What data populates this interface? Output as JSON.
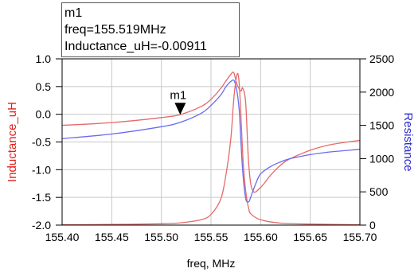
{
  "marker_box": {
    "name": "m1",
    "freq_line": "freq=155.519MHz",
    "value_line": "Inductance_uH=-0.00911"
  },
  "marker_label": "m1",
  "colors": {
    "inductance": "#e46a6a",
    "resistance": "#6a6af0",
    "grid": "#c8c8c8",
    "frame": "#000000",
    "left_axis_title": "#e0201b",
    "right_axis_title": "#2b2bd1"
  },
  "chart_data": {
    "type": "line",
    "xlabel": "freq, MHz",
    "ylabel_left": "Inductance_uH",
    "ylabel_right": "Resistance",
    "xlim": [
      155.4,
      155.7
    ],
    "ylim_left": [
      -2.0,
      1.0
    ],
    "ylim_right": [
      0,
      2500
    ],
    "x_ticks": [
      "155.40",
      "155.45",
      "155.50",
      "155.55",
      "155.60",
      "155.65",
      "155.70"
    ],
    "y_left_ticks": [
      "1.0",
      "0.5",
      "0.0",
      "-0.5",
      "-1.0",
      "-1.5",
      "-2.0"
    ],
    "y_right_ticks": [
      "2500",
      "2000",
      "1500",
      "1000",
      "500",
      "0"
    ],
    "grid": true,
    "marker": {
      "x": 155.519,
      "y": -0.00911
    },
    "series": [
      {
        "name": "Inductance_uH",
        "axis": "left",
        "x": [
          155.4,
          155.45,
          155.5,
          155.52,
          155.54,
          155.55,
          155.56,
          155.565,
          155.57,
          155.573,
          155.576,
          155.58,
          155.582,
          155.585,
          155.588,
          155.592,
          155.6,
          155.61,
          155.62,
          155.63,
          155.65,
          155.67,
          155.7
        ],
        "values": [
          -0.2,
          -0.15,
          -0.06,
          0.0,
          0.14,
          0.27,
          0.47,
          0.6,
          0.72,
          0.75,
          0.55,
          0.42,
          0.47,
          0.2,
          -0.9,
          -1.38,
          -1.32,
          -1.1,
          -0.92,
          -0.8,
          -0.65,
          -0.55,
          -0.47
        ]
      },
      {
        "name": "Resistance",
        "axis": "right",
        "x": [
          155.4,
          155.45,
          155.5,
          155.52,
          155.54,
          155.55,
          155.56,
          155.565,
          155.57,
          155.574,
          155.578,
          155.58,
          155.582,
          155.585,
          155.588,
          155.59,
          155.595,
          155.6,
          155.61,
          155.62,
          155.63,
          155.65,
          155.67,
          155.7
        ],
        "values": [
          1300,
          1370,
          1480,
          1550,
          1680,
          1800,
          1960,
          2080,
          2160,
          2150,
          1800,
          1300,
          800,
          400,
          350,
          420,
          620,
          770,
          880,
          950,
          1000,
          1060,
          1100,
          1140
        ]
      },
      {
        "name": "",
        "axis": "right",
        "x": [
          155.4,
          155.45,
          155.5,
          155.52,
          155.54,
          155.55,
          155.56,
          155.565,
          155.57,
          155.573,
          155.576,
          155.578,
          155.58,
          155.582,
          155.584,
          155.586,
          155.588,
          155.59,
          155.6,
          155.62,
          155.65,
          155.7
        ],
        "values": [
          5,
          10,
          20,
          35,
          80,
          160,
          400,
          750,
          1300,
          1900,
          2250,
          2200,
          1700,
          1050,
          650,
          400,
          250,
          170,
          80,
          30,
          15,
          5
        ]
      }
    ]
  }
}
